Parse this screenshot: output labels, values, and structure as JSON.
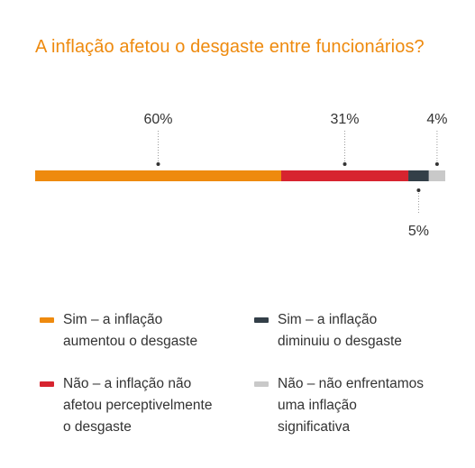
{
  "title": "A inflação afetou o desgaste entre funcionários?",
  "chart_data": {
    "type": "bar",
    "orientation": "horizontal-stacked-100",
    "unit": "%",
    "series": [
      {
        "name": "Sim – a inflação aumentou o desgaste",
        "value": 60,
        "label": "60%",
        "color": "#ee8a0e",
        "label_position": "above"
      },
      {
        "name": "Não – a inflação não afetou perceptivelmente o desgaste",
        "value": 31,
        "label": "31%",
        "color": "#d7242f",
        "label_position": "above"
      },
      {
        "name": "Sim – a inflação diminuiu o desgaste",
        "value": 5,
        "label": "5%",
        "color": "#333f48",
        "label_position": "below"
      },
      {
        "name": "Não – não enfrentamos uma inflação significativa",
        "value": 4,
        "label": "4%",
        "color": "#c9c9c9",
        "label_position": "above"
      }
    ]
  },
  "legend": [
    {
      "label": "Sim – a inflação\naumentou o desgaste",
      "color": "#ee8a0e"
    },
    {
      "label": "Sim – a inflação\ndiminuiu o desgaste",
      "color": "#333f48"
    },
    {
      "label": "Não – a inflação não\nafetou perceptivelmente\no desgaste",
      "color": "#d7242f"
    },
    {
      "label": "Não – não enfrentamos\numa inflação\nsignificativa",
      "color": "#c9c9c9"
    }
  ]
}
